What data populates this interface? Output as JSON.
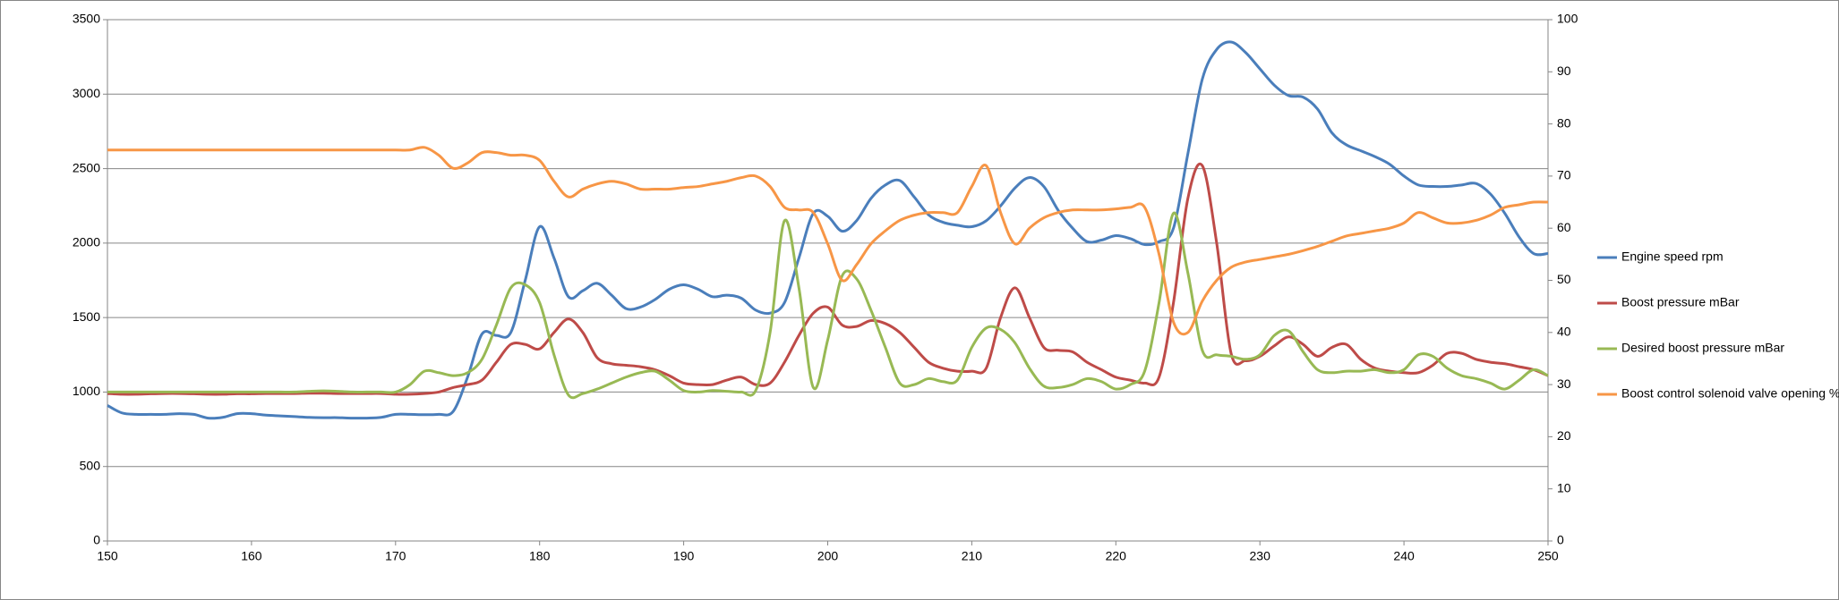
{
  "chart_data": {
    "type": "line",
    "x": [
      150,
      151,
      152,
      153,
      154,
      155,
      156,
      157,
      158,
      159,
      160,
      161,
      162,
      163,
      164,
      165,
      166,
      167,
      168,
      169,
      170,
      171,
      172,
      173,
      174,
      175,
      176,
      177,
      178,
      179,
      180,
      181,
      182,
      183,
      184,
      185,
      186,
      187,
      188,
      189,
      190,
      191,
      192,
      193,
      194,
      195,
      196,
      197,
      198,
      199,
      200,
      201,
      202,
      203,
      204,
      205,
      206,
      207,
      208,
      209,
      210,
      211,
      212,
      213,
      214,
      215,
      216,
      217,
      218,
      219,
      220,
      221,
      222,
      223,
      224,
      225,
      226,
      227,
      228,
      229,
      230,
      231,
      232,
      233,
      234,
      235,
      236,
      237,
      238,
      239,
      240,
      241,
      242,
      243,
      244,
      245,
      246,
      247,
      248,
      249,
      250
    ],
    "xlim": [
      150,
      250
    ],
    "xticks": [
      150,
      160,
      170,
      180,
      190,
      200,
      210,
      220,
      230,
      240,
      250
    ],
    "ylim": [
      0,
      3500
    ],
    "yticks": [
      0,
      500,
      1000,
      1500,
      2000,
      2500,
      3000,
      3500
    ],
    "y2lim": [
      0,
      100
    ],
    "y2ticks": [
      0,
      10,
      20,
      30,
      40,
      50,
      60,
      70,
      80,
      90,
      100
    ],
    "grid": true,
    "legend": "right",
    "series": [
      {
        "name": "Engine speed rpm",
        "color": "#4a7ebb",
        "values": [
          910,
          860,
          850,
          850,
          850,
          855,
          850,
          825,
          830,
          855,
          855,
          845,
          840,
          835,
          830,
          828,
          828,
          825,
          825,
          830,
          850,
          850,
          848,
          850,
          870,
          1100,
          1390,
          1380,
          1400,
          1750,
          2110,
          1900,
          1640,
          1680,
          1730,
          1650,
          1560,
          1570,
          1620,
          1690,
          1720,
          1690,
          1640,
          1650,
          1630,
          1550,
          1530,
          1600,
          1900,
          2200,
          2180,
          2080,
          2150,
          2300,
          2390,
          2420,
          2310,
          2190,
          2140,
          2120,
          2110,
          2150,
          2250,
          2370,
          2440,
          2380,
          2220,
          2100,
          2010,
          2020,
          2050,
          2030,
          1990,
          2010,
          2100,
          2600,
          3100,
          3300,
          3350,
          3280,
          3170,
          3060,
          2990,
          2980,
          2900,
          2740,
          2660,
          2620,
          2580,
          2530,
          2450,
          2390,
          2380,
          2380,
          2390,
          2400,
          2330,
          2200,
          2040,
          1930,
          1930
        ]
      },
      {
        "name": "Boost pressure mBar",
        "color": "#be4b48",
        "values": [
          990,
          985,
          985,
          988,
          990,
          990,
          988,
          985,
          985,
          988,
          988,
          990,
          990,
          990,
          992,
          992,
          990,
          990,
          990,
          990,
          985,
          985,
          990,
          1000,
          1030,
          1050,
          1080,
          1200,
          1320,
          1320,
          1290,
          1400,
          1490,
          1400,
          1230,
          1190,
          1180,
          1170,
          1150,
          1110,
          1060,
          1050,
          1050,
          1080,
          1100,
          1050,
          1060,
          1200,
          1380,
          1530,
          1570,
          1450,
          1440,
          1480,
          1460,
          1400,
          1300,
          1200,
          1160,
          1140,
          1140,
          1160,
          1500,
          1700,
          1500,
          1300,
          1280,
          1270,
          1200,
          1150,
          1100,
          1080,
          1060,
          1100,
          1600,
          2300,
          2520,
          2000,
          1260,
          1210,
          1240,
          1310,
          1370,
          1320,
          1240,
          1300,
          1320,
          1220,
          1160,
          1140,
          1130,
          1130,
          1180,
          1260,
          1260,
          1220,
          1200,
          1190,
          1170,
          1150,
          1110
        ]
      },
      {
        "name": "Desired boost pressure mBar",
        "color": "#98b954",
        "values": [
          1000,
          1000,
          1000,
          1000,
          1000,
          1000,
          1000,
          1000,
          1000,
          1000,
          1000,
          1000,
          1000,
          1000,
          1005,
          1008,
          1005,
          1000,
          1000,
          1000,
          1000,
          1050,
          1140,
          1130,
          1110,
          1130,
          1220,
          1450,
          1700,
          1720,
          1600,
          1250,
          980,
          990,
          1020,
          1060,
          1100,
          1130,
          1140,
          1080,
          1010,
          1000,
          1010,
          1005,
          1000,
          1010,
          1400,
          2150,
          1700,
          1030,
          1350,
          1780,
          1760,
          1550,
          1300,
          1060,
          1050,
          1090,
          1070,
          1080,
          1300,
          1430,
          1420,
          1330,
          1160,
          1040,
          1030,
          1050,
          1090,
          1070,
          1020,
          1050,
          1140,
          1600,
          2200,
          1800,
          1280,
          1250,
          1240,
          1220,
          1250,
          1380,
          1410,
          1270,
          1150,
          1130,
          1140,
          1140,
          1150,
          1130,
          1150,
          1250,
          1240,
          1160,
          1110,
          1090,
          1060,
          1020,
          1080,
          1150,
          1110
        ]
      },
      {
        "name": "Boost control solenoid valve opening %",
        "color": "#f79646",
        "axis": "y2",
        "values": [
          75,
          75,
          75,
          75,
          75,
          75,
          75,
          75,
          75,
          75,
          75,
          75,
          75,
          75,
          75,
          75,
          75,
          75,
          75,
          75,
          75,
          75,
          75.5,
          74,
          71.5,
          72.5,
          74.5,
          74.5,
          74,
          74,
          73,
          69,
          66,
          67.5,
          68.5,
          69,
          68.5,
          67.5,
          67.5,
          67.5,
          67.8,
          68,
          68.5,
          69,
          69.7,
          70,
          68,
          64,
          63.5,
          63,
          57,
          50,
          53,
          57,
          59.5,
          61.5,
          62.5,
          63,
          63,
          63,
          68,
          72,
          63,
          57,
          60,
          62,
          63,
          63.5,
          63.5,
          63.5,
          63.7,
          64,
          64,
          55,
          42,
          40,
          46,
          50,
          52.5,
          53.5,
          54,
          54.5,
          55,
          55.7,
          56.5,
          57.5,
          58.5,
          59,
          59.5,
          60,
          61,
          63,
          62,
          61,
          61,
          61.5,
          62.5,
          64,
          64.5,
          65,
          65
        ]
      }
    ]
  }
}
